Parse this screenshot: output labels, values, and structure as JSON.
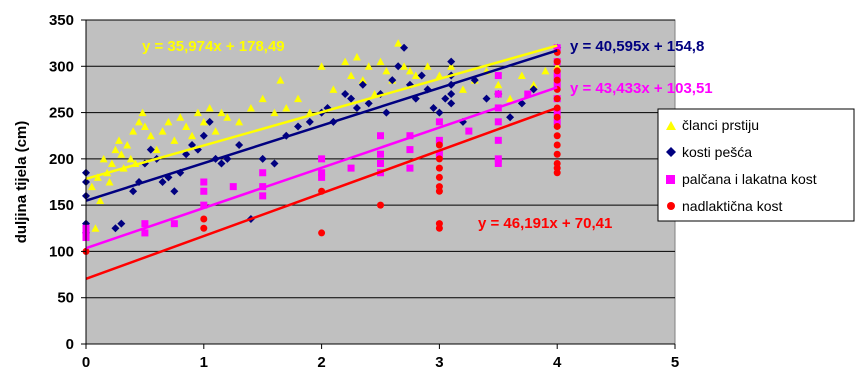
{
  "chart_data": {
    "type": "scatter",
    "ylabel": "duljina tijela (cm)",
    "xlabel": "",
    "xlim": [
      0,
      5
    ],
    "ylim": [
      0,
      350
    ],
    "xticks": [
      "0",
      "1",
      "2",
      "3",
      "4",
      "5"
    ],
    "yticks": [
      "0",
      "50",
      "100",
      "150",
      "200",
      "250",
      "300",
      "350"
    ],
    "grid": "horizontal",
    "legend_position": "right",
    "plot_background": "#c0c0c0",
    "series": [
      {
        "name": "članci prstiju",
        "color": "#ffff00",
        "marker": "triangle",
        "equation": "y = 35,974x + 178,49",
        "slope": 35.974,
        "intercept": 178.49,
        "points": [
          [
            0.05,
            170
          ],
          [
            0.08,
            125
          ],
          [
            0.1,
            180
          ],
          [
            0.12,
            155
          ],
          [
            0.15,
            200
          ],
          [
            0.18,
            185
          ],
          [
            0.2,
            175
          ],
          [
            0.22,
            195
          ],
          [
            0.25,
            210
          ],
          [
            0.28,
            220
          ],
          [
            0.3,
            205
          ],
          [
            0.32,
            190
          ],
          [
            0.35,
            215
          ],
          [
            0.38,
            200
          ],
          [
            0.4,
            230
          ],
          [
            0.42,
            195
          ],
          [
            0.45,
            240
          ],
          [
            0.48,
            250
          ],
          [
            0.5,
            235
          ],
          [
            0.55,
            225
          ],
          [
            0.6,
            210
          ],
          [
            0.65,
            230
          ],
          [
            0.7,
            240
          ],
          [
            0.75,
            220
          ],
          [
            0.8,
            245
          ],
          [
            0.85,
            235
          ],
          [
            0.9,
            225
          ],
          [
            0.95,
            250
          ],
          [
            1.0,
            240
          ],
          [
            1.05,
            255
          ],
          [
            1.1,
            230
          ],
          [
            1.15,
            250
          ],
          [
            1.2,
            245
          ],
          [
            1.3,
            240
          ],
          [
            1.4,
            255
          ],
          [
            1.5,
            265
          ],
          [
            1.6,
            250
          ],
          [
            1.65,
            285
          ],
          [
            1.7,
            255
          ],
          [
            1.8,
            265
          ],
          [
            1.9,
            250
          ],
          [
            2.0,
            300
          ],
          [
            2.1,
            275
          ],
          [
            2.2,
            305
          ],
          [
            2.25,
            290
          ],
          [
            2.3,
            310
          ],
          [
            2.35,
            285
          ],
          [
            2.4,
            300
          ],
          [
            2.45,
            270
          ],
          [
            2.5,
            305
          ],
          [
            2.55,
            295
          ],
          [
            2.6,
            285
          ],
          [
            2.65,
            325
          ],
          [
            2.7,
            300
          ],
          [
            2.75,
            295
          ],
          [
            2.8,
            290
          ],
          [
            2.9,
            300
          ],
          [
            3.0,
            290
          ],
          [
            3.1,
            300
          ],
          [
            3.2,
            275
          ],
          [
            3.3,
            285
          ],
          [
            3.4,
            295
          ],
          [
            3.5,
            280
          ],
          [
            3.6,
            265
          ],
          [
            3.7,
            290
          ],
          [
            3.8,
            280
          ],
          [
            3.9,
            295
          ],
          [
            4.0,
            300
          ]
        ]
      },
      {
        "name": "kosti pešća",
        "color": "#000080",
        "marker": "diamond",
        "equation": "y = 40,595x + 154,8",
        "slope": 40.595,
        "intercept": 154.8,
        "points": [
          [
            0.0,
            185
          ],
          [
            0.0,
            160
          ],
          [
            0.0,
            130
          ],
          [
            0.0,
            120
          ],
          [
            0.0,
            175
          ],
          [
            0.25,
            125
          ],
          [
            0.3,
            130
          ],
          [
            0.4,
            165
          ],
          [
            0.45,
            175
          ],
          [
            0.5,
            195
          ],
          [
            0.55,
            210
          ],
          [
            0.6,
            200
          ],
          [
            0.65,
            175
          ],
          [
            0.7,
            180
          ],
          [
            0.75,
            165
          ],
          [
            0.8,
            185
          ],
          [
            0.85,
            205
          ],
          [
            0.9,
            215
          ],
          [
            0.95,
            210
          ],
          [
            1.0,
            225
          ],
          [
            1.05,
            240
          ],
          [
            1.1,
            200
          ],
          [
            1.15,
            195
          ],
          [
            1.2,
            200
          ],
          [
            1.3,
            215
          ],
          [
            1.4,
            135
          ],
          [
            1.5,
            200
          ],
          [
            1.6,
            195
          ],
          [
            1.7,
            225
          ],
          [
            1.8,
            235
          ],
          [
            1.9,
            240
          ],
          [
            2.0,
            250
          ],
          [
            2.05,
            255
          ],
          [
            2.1,
            240
          ],
          [
            2.2,
            270
          ],
          [
            2.25,
            265
          ],
          [
            2.3,
            255
          ],
          [
            2.35,
            280
          ],
          [
            2.4,
            260
          ],
          [
            2.5,
            270
          ],
          [
            2.55,
            250
          ],
          [
            2.6,
            285
          ],
          [
            2.65,
            300
          ],
          [
            2.7,
            320
          ],
          [
            2.75,
            280
          ],
          [
            2.8,
            265
          ],
          [
            2.85,
            290
          ],
          [
            2.9,
            275
          ],
          [
            2.95,
            255
          ],
          [
            3.0,
            250
          ],
          [
            3.05,
            265
          ],
          [
            3.1,
            305
          ],
          [
            3.1,
            290
          ],
          [
            3.1,
            280
          ],
          [
            3.1,
            270
          ],
          [
            3.1,
            260
          ],
          [
            3.2,
            240
          ],
          [
            3.3,
            285
          ],
          [
            3.4,
            265
          ],
          [
            3.5,
            270
          ],
          [
            3.6,
            245
          ],
          [
            3.7,
            260
          ],
          [
            3.8,
            275
          ],
          [
            4.0,
            320
          ]
        ]
      },
      {
        "name": "palčana i lakatna kost",
        "color": "#ff00ff",
        "marker": "square",
        "equation": "y = 43,433x + 103,51",
        "slope": 43.433,
        "intercept": 103.51,
        "points": [
          [
            0.0,
            125
          ],
          [
            0.0,
            120
          ],
          [
            0.0,
            115
          ],
          [
            0.5,
            130
          ],
          [
            0.5,
            120
          ],
          [
            0.75,
            130
          ],
          [
            1.0,
            175
          ],
          [
            1.0,
            165
          ],
          [
            1.0,
            150
          ],
          [
            1.25,
            170
          ],
          [
            1.5,
            185
          ],
          [
            1.5,
            170
          ],
          [
            1.5,
            160
          ],
          [
            2.0,
            200
          ],
          [
            2.0,
            185
          ],
          [
            2.0,
            180
          ],
          [
            2.25,
            190
          ],
          [
            2.5,
            225
          ],
          [
            2.5,
            205
          ],
          [
            2.5,
            195
          ],
          [
            2.5,
            185
          ],
          [
            2.75,
            225
          ],
          [
            2.75,
            210
          ],
          [
            2.75,
            190
          ],
          [
            3.0,
            240
          ],
          [
            3.0,
            220
          ],
          [
            3.0,
            205
          ],
          [
            3.25,
            230
          ],
          [
            3.5,
            290
          ],
          [
            3.5,
            270
          ],
          [
            3.5,
            255
          ],
          [
            3.5,
            240
          ],
          [
            3.5,
            220
          ],
          [
            3.5,
            200
          ],
          [
            3.5,
            195
          ],
          [
            3.75,
            270
          ],
          [
            4.0,
            320
          ],
          [
            4.0,
            305
          ],
          [
            4.0,
            290
          ],
          [
            4.0,
            280
          ],
          [
            4.0,
            265
          ],
          [
            4.0,
            250
          ],
          [
            4.0,
            240
          ]
        ]
      },
      {
        "name": "nadlaktična kost",
        "color": "#ff0000",
        "marker": "circle",
        "equation": "y = 46,191x + 70,41",
        "slope": 46.191,
        "intercept": 70.41,
        "points": [
          [
            0.0,
            100
          ],
          [
            1.0,
            135
          ],
          [
            1.0,
            125
          ],
          [
            2.0,
            165
          ],
          [
            2.0,
            120
          ],
          [
            2.5,
            150
          ],
          [
            3.0,
            215
          ],
          [
            3.0,
            200
          ],
          [
            3.0,
            190
          ],
          [
            3.0,
            180
          ],
          [
            3.0,
            170
          ],
          [
            3.0,
            165
          ],
          [
            3.0,
            130
          ],
          [
            3.0,
            125
          ],
          [
            4.0,
            315
          ],
          [
            4.0,
            305
          ],
          [
            4.0,
            295
          ],
          [
            4.0,
            285
          ],
          [
            4.0,
            275
          ],
          [
            4.0,
            265
          ],
          [
            4.0,
            255
          ],
          [
            4.0,
            245
          ],
          [
            4.0,
            235
          ],
          [
            4.0,
            225
          ],
          [
            4.0,
            215
          ],
          [
            4.0,
            205
          ],
          [
            4.0,
            195
          ],
          [
            4.0,
            190
          ],
          [
            4.0,
            185
          ]
        ]
      }
    ]
  }
}
